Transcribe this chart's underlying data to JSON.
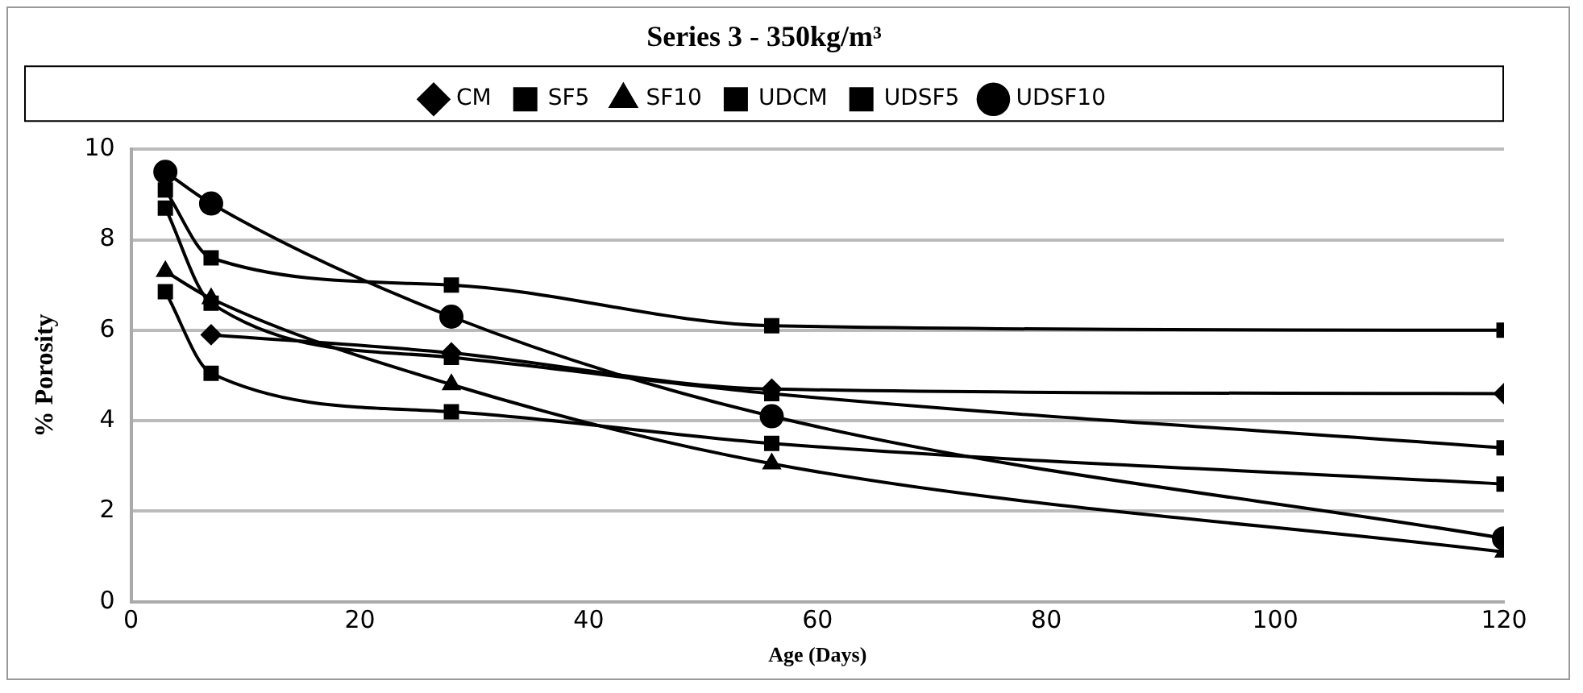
{
  "chart_data": {
    "type": "line",
    "title": "Series 3 - 350kg/m³",
    "xlabel": "Age (Days)",
    "ylabel": "% Porosity",
    "x": [
      3,
      7,
      28,
      56,
      120
    ],
    "series": [
      {
        "name": "CM",
        "color": "#000000",
        "marker": "diamond",
        "values": [
          null,
          5.9,
          5.5,
          4.7,
          4.6
        ]
      },
      {
        "name": "SF5",
        "color": "#000000",
        "marker": "square",
        "values": [
          6.85,
          5.05,
          4.2,
          3.5,
          2.6
        ]
      },
      {
        "name": "SF10",
        "color": "#000000",
        "marker": "triangle",
        "values": [
          7.3,
          6.7,
          4.8,
          3.05,
          1.1
        ]
      },
      {
        "name": "UDCM",
        "color": "#000000",
        "marker": "square",
        "values": [
          8.7,
          6.6,
          5.4,
          4.6,
          3.4
        ]
      },
      {
        "name": "UDSF5",
        "color": "#000000",
        "marker": "square",
        "values": [
          9.1,
          7.6,
          7.0,
          6.1,
          6.0
        ]
      },
      {
        "name": "UDSF10",
        "color": "#000000",
        "marker": "circle",
        "values": [
          9.5,
          8.8,
          6.3,
          4.1,
          1.4
        ]
      }
    ],
    "xlim": [
      0,
      120
    ],
    "xticks": [
      0,
      20,
      40,
      60,
      80,
      100,
      120
    ],
    "ylim": [
      0,
      10
    ],
    "yticks": [
      0,
      2,
      4,
      6,
      8,
      10
    ],
    "grid": "y",
    "legend": "top",
    "line_style": "solid"
  }
}
